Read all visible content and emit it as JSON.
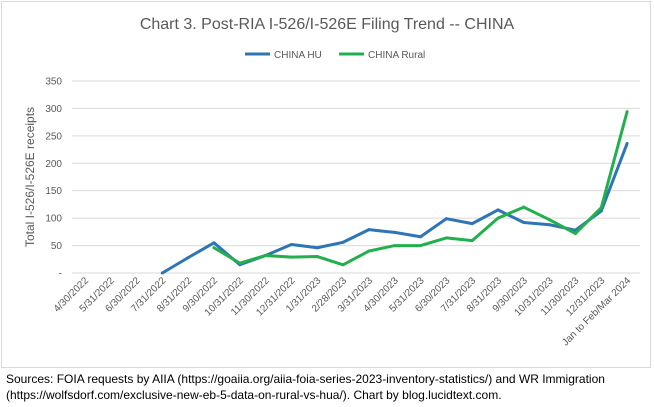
{
  "chart_data": {
    "type": "line",
    "title": "Chart 3. Post-RIA I-526/I-526E Filing Trend -- CHINA",
    "ylabel": "Total I-526/I-526E receipts",
    "xlabel": "",
    "ylim": [
      0,
      350
    ],
    "yticks": [
      0,
      50,
      100,
      150,
      200,
      250,
      300,
      350
    ],
    "ytick_labels": [
      "-",
      "50",
      "100",
      "150",
      "200",
      "250",
      "300",
      "350"
    ],
    "grid": true,
    "legend_position": "top",
    "categories": [
      "4/30/2022",
      "5/31/2022",
      "6/30/2022",
      "7/31/2022",
      "8/31/2022",
      "9/30/2022",
      "10/31/2022",
      "11/30/2022",
      "12/31/2022",
      "1/31/2023",
      "2/28/2023",
      "3/31/2023",
      "4/30/2023",
      "5/31/2023",
      "6/30/2023",
      "7/31/2023",
      "8/31/2023",
      "9/30/2023",
      "10/31/2023",
      "11/30/2023",
      "12/31/2023",
      "Jan to Feb/Mar 2024"
    ],
    "series": [
      {
        "name": "CHINA HU",
        "color": "#2e75b6",
        "values": [
          null,
          null,
          null,
          0,
          28,
          55,
          15,
          32,
          52,
          46,
          56,
          79,
          74,
          66,
          99,
          90,
          115,
          92,
          88,
          78,
          113,
          236
        ]
      },
      {
        "name": "CHINA Rural",
        "color": "#22b04c",
        "values": [
          null,
          null,
          null,
          null,
          null,
          46,
          18,
          32,
          29,
          30,
          15,
          40,
          50,
          50,
          64,
          59,
          100,
          120,
          97,
          72,
          119,
          294
        ]
      }
    ]
  },
  "footer": {
    "source_line_1": "Sources: FOIA requests by AIIA (https://goaiia.org/aiia-foia-series-2023-inventory-statistics/) and WR Immigration",
    "source_line_2": "(https://wolfsdorf.com/exclusive-new-eb-5-data-on-rural-vs-hua/). Chart by blog.lucidtext.com."
  }
}
